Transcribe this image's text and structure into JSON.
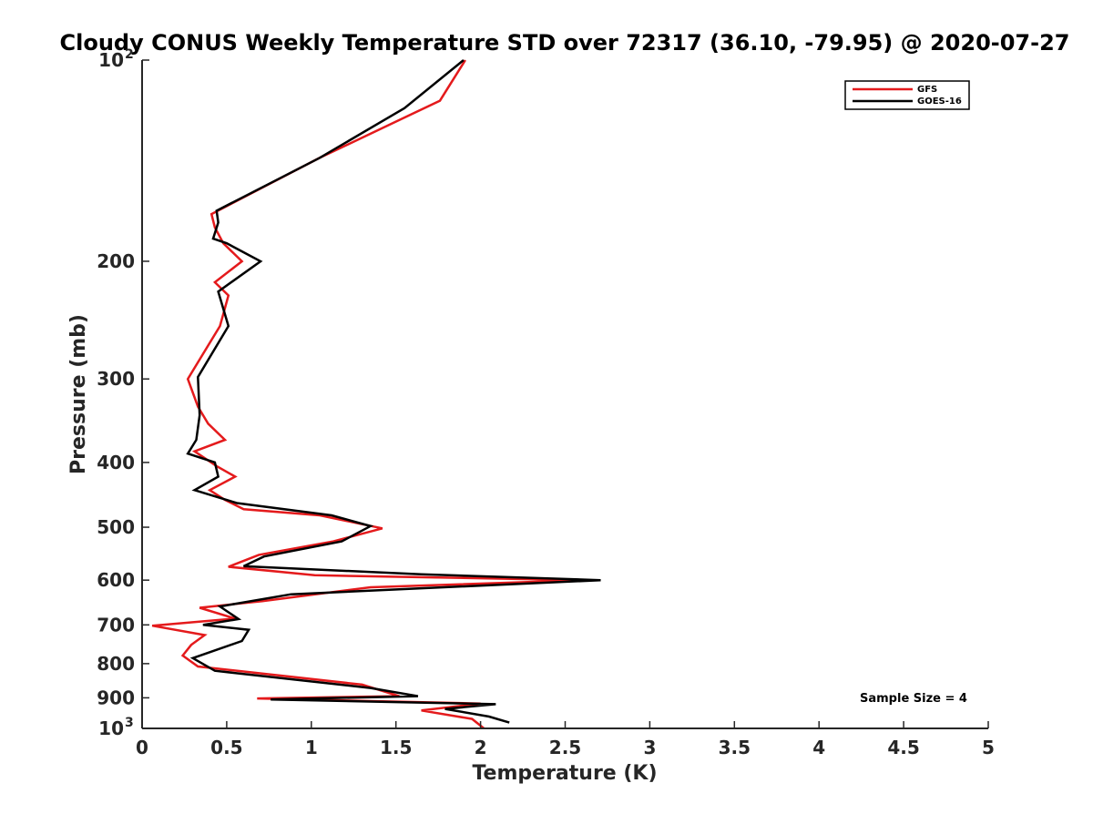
{
  "chart_data": {
    "type": "line",
    "title": "Cloudy CONUS Weekly Temperature STD over 72317 (36.10, -79.95) @ 2020-07-27",
    "xlabel": "Temperature (K)",
    "ylabel": "Pressure (mb)",
    "xlim": [
      0,
      5
    ],
    "ylim": [
      100,
      1000
    ],
    "yscale": "log",
    "y_reversed": true,
    "grid": false,
    "legend_position": "top-right",
    "x_ticks": [
      "0",
      "0.5",
      "1",
      "1.5",
      "2",
      "2.5",
      "3",
      "3.5",
      "4",
      "4.5",
      "5"
    ],
    "y_ticks": [
      {
        "value": 100,
        "base": "10",
        "exp": "2"
      },
      {
        "value": 200,
        "label": "200"
      },
      {
        "value": 300,
        "label": "300"
      },
      {
        "value": 400,
        "label": "400"
      },
      {
        "value": 500,
        "label": "500"
      },
      {
        "value": 600,
        "label": "600"
      },
      {
        "value": 700,
        "label": "700"
      },
      {
        "value": 800,
        "label": "800"
      },
      {
        "value": 900,
        "label": "900"
      },
      {
        "value": 1000,
        "base": "10",
        "exp": "3"
      }
    ],
    "annotation": "Sample Size = 4",
    "series": [
      {
        "name": "GFS",
        "color": "#e41a1c",
        "points": [
          [
            1.91,
            100
          ],
          [
            1.76,
            115
          ],
          [
            1.05,
            140
          ],
          [
            0.41,
            170
          ],
          [
            0.43,
            178
          ],
          [
            0.48,
            188
          ],
          [
            0.59,
            200
          ],
          [
            0.43,
            215
          ],
          [
            0.51,
            225
          ],
          [
            0.46,
            250
          ],
          [
            0.27,
            300
          ],
          [
            0.33,
            330
          ],
          [
            0.39,
            350
          ],
          [
            0.49,
            370
          ],
          [
            0.31,
            385
          ],
          [
            0.44,
            405
          ],
          [
            0.55,
            420
          ],
          [
            0.4,
            440
          ],
          [
            0.49,
            455
          ],
          [
            0.6,
            470
          ],
          [
            1.05,
            480
          ],
          [
            1.42,
            502
          ],
          [
            1.13,
            525
          ],
          [
            0.69,
            550
          ],
          [
            0.51,
            573
          ],
          [
            1.02,
            590
          ],
          [
            2.62,
            600
          ],
          [
            1.35,
            615
          ],
          [
            0.71,
            645
          ],
          [
            0.34,
            660
          ],
          [
            0.55,
            685
          ],
          [
            0.06,
            702
          ],
          [
            0.37,
            725
          ],
          [
            0.29,
            750
          ],
          [
            0.24,
            778
          ],
          [
            0.33,
            808
          ],
          [
            1.3,
            860
          ],
          [
            1.52,
            895
          ],
          [
            0.68,
            902
          ],
          [
            2.0,
            918
          ],
          [
            1.65,
            940
          ],
          [
            1.95,
            968
          ],
          [
            2.02,
            1000
          ]
        ]
      },
      {
        "name": "GOES-16",
        "color": "#000000",
        "points": [
          [
            1.9,
            100
          ],
          [
            1.55,
            118
          ],
          [
            1.05,
            140
          ],
          [
            0.44,
            168
          ],
          [
            0.45,
            175
          ],
          [
            0.42,
            185
          ],
          [
            0.5,
            188
          ],
          [
            0.7,
            200
          ],
          [
            0.45,
            222
          ],
          [
            0.51,
            250
          ],
          [
            0.33,
            298
          ],
          [
            0.34,
            340
          ],
          [
            0.32,
            370
          ],
          [
            0.27,
            388
          ],
          [
            0.43,
            400
          ],
          [
            0.45,
            420
          ],
          [
            0.31,
            440
          ],
          [
            0.56,
            460
          ],
          [
            1.12,
            480
          ],
          [
            1.35,
            498
          ],
          [
            1.18,
            525
          ],
          [
            0.72,
            553
          ],
          [
            0.6,
            572
          ],
          [
            1.65,
            588
          ],
          [
            2.71,
            600
          ],
          [
            0.88,
            630
          ],
          [
            0.46,
            657
          ],
          [
            0.57,
            686
          ],
          [
            0.36,
            700
          ],
          [
            0.63,
            712
          ],
          [
            0.59,
            740
          ],
          [
            0.3,
            785
          ],
          [
            0.43,
            820
          ],
          [
            1.35,
            870
          ],
          [
            1.63,
            895
          ],
          [
            0.76,
            905
          ],
          [
            2.09,
            920
          ],
          [
            1.79,
            935
          ],
          [
            2.05,
            960
          ],
          [
            2.17,
            980
          ]
        ]
      }
    ]
  }
}
